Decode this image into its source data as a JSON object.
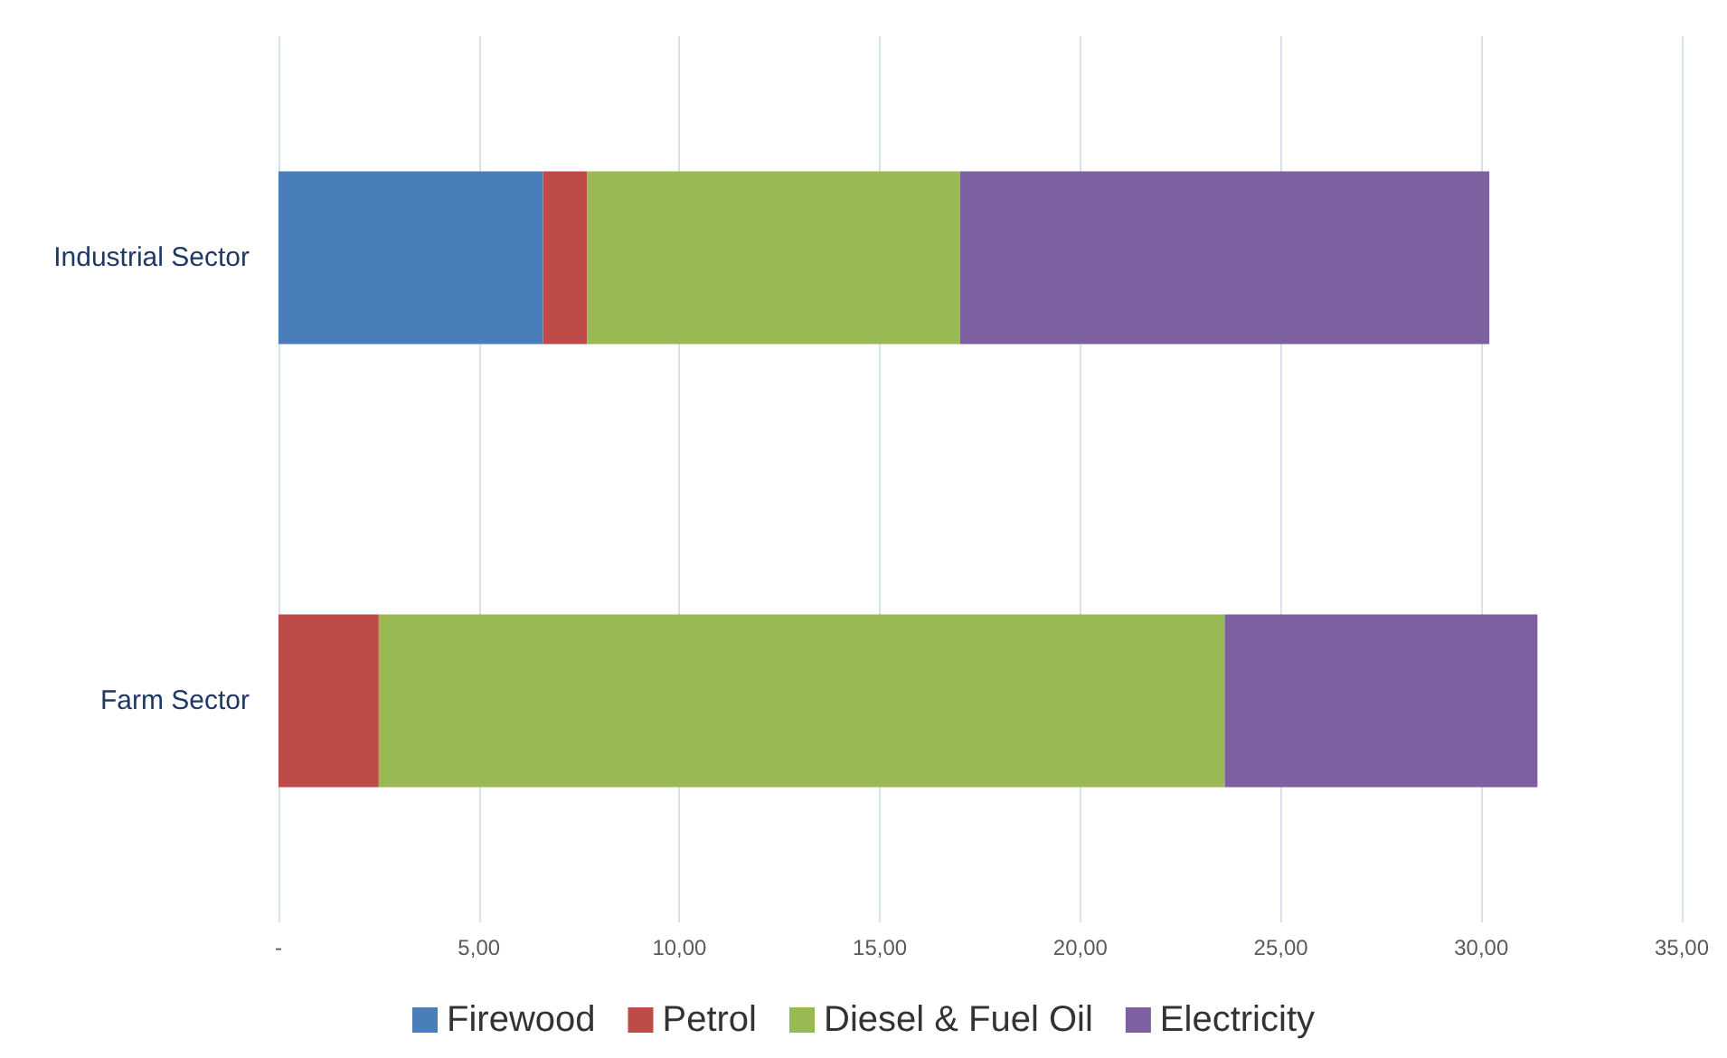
{
  "chart_data": {
    "type": "bar",
    "orientation": "horizontal",
    "stacked": true,
    "categories": [
      "Industrial Sector",
      "Farm Sector"
    ],
    "series": [
      {
        "name": "Firewood",
        "color": "#4a7ebb",
        "values": [
          6.6,
          0
        ]
      },
      {
        "name": "Petrol",
        "color": "#be4b48",
        "values": [
          1.1,
          2.5
        ]
      },
      {
        "name": "Diesel & Fuel Oil",
        "color": "#98b954",
        "values": [
          9.3,
          21.1
        ]
      },
      {
        "name": "Electricity",
        "color": "#7d60a0",
        "values": [
          13.2,
          7.8
        ]
      }
    ],
    "xlim": [
      0,
      35
    ],
    "xticks": [
      {
        "value": 0,
        "label": "-"
      },
      {
        "value": 5,
        "label": "5,00"
      },
      {
        "value": 10,
        "label": "10,00"
      },
      {
        "value": 15,
        "label": "15,00"
      },
      {
        "value": 20,
        "label": "20,00"
      },
      {
        "value": 25,
        "label": "25,00"
      },
      {
        "value": 30,
        "label": "30,00"
      },
      {
        "value": 35,
        "label": "35,00"
      }
    ],
    "grid": "x",
    "legend": "bottom"
  }
}
